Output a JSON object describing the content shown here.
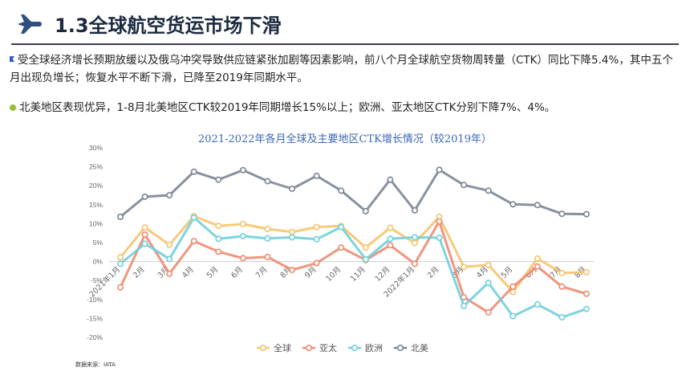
{
  "slide": {
    "title": "1.3全球航空货运市场下滑",
    "paragraph1": "受全球经济增长预期放缓以及俄乌冲突导致供应链紧张加剧等因素影响，前八个月全球航空货物周转量（CTK）同比下降5.4%，其中五个月出现负增长；恢复水平不断下滑，已降至2019年同期水平。",
    "paragraph2": "北美地区表现优异，1-8月北美地区CTK较2019年同期增长15%以上；欧洲、亚太地区CTK分别下降7%、4%。",
    "source": "数据来源：IATA"
  },
  "chart_data": {
    "type": "line",
    "title": "2021-2022年各月全球及主要地区CTK增长情况（较2019年）",
    "categories": [
      "2021年1月",
      "2月",
      "3月",
      "4月",
      "5月",
      "6月",
      "7月",
      "8月",
      "9月",
      "10月",
      "11月",
      "12月",
      "2022年1月",
      "2月",
      "3月",
      "4月",
      "5月",
      "6月",
      "7月",
      "8月"
    ],
    "ylim": [
      -20,
      30
    ],
    "yticks": [
      "-20%",
      "-15%",
      "-10%",
      "-5%",
      "0%",
      "5%",
      "10%",
      "15%",
      "20%",
      "25%",
      "30%"
    ],
    "legend_position": "bottom",
    "grid": false,
    "series": [
      {
        "name": "全球",
        "color": "#f7c36b",
        "values": [
          1.1,
          9.0,
          4.4,
          12.0,
          9.4,
          9.9,
          8.6,
          7.8,
          9.1,
          9.4,
          3.7,
          8.9,
          4.9,
          11.8,
          -1.4,
          -0.9,
          -8.0,
          0.8,
          -3.0,
          -2.8
        ]
      },
      {
        "name": "亚太",
        "color": "#f08a70",
        "values": [
          -6.8,
          7.1,
          -3.2,
          5.4,
          2.6,
          0.9,
          1.2,
          -2.2,
          -0.4,
          3.7,
          0.4,
          4.3,
          -0.6,
          10.6,
          -9.4,
          -13.4,
          -6.6,
          -1.3,
          -6.6,
          -8.5
        ]
      },
      {
        "name": "欧洲",
        "color": "#6fcfdc",
        "values": [
          -0.6,
          4.7,
          0.7,
          11.6,
          6.0,
          6.7,
          6.1,
          6.4,
          5.9,
          9.1,
          0.6,
          6.0,
          6.4,
          6.3,
          -11.7,
          -5.6,
          -14.4,
          -11.3,
          -14.7,
          -12.5
        ]
      },
      {
        "name": "北美",
        "color": "#7b8593",
        "values": [
          11.8,
          17.1,
          17.5,
          23.7,
          21.6,
          24.1,
          21.2,
          19.2,
          22.6,
          18.7,
          13.3,
          21.6,
          13.5,
          24.2,
          20.2,
          18.7,
          15.1,
          14.9,
          12.6,
          12.5
        ]
      }
    ]
  }
}
